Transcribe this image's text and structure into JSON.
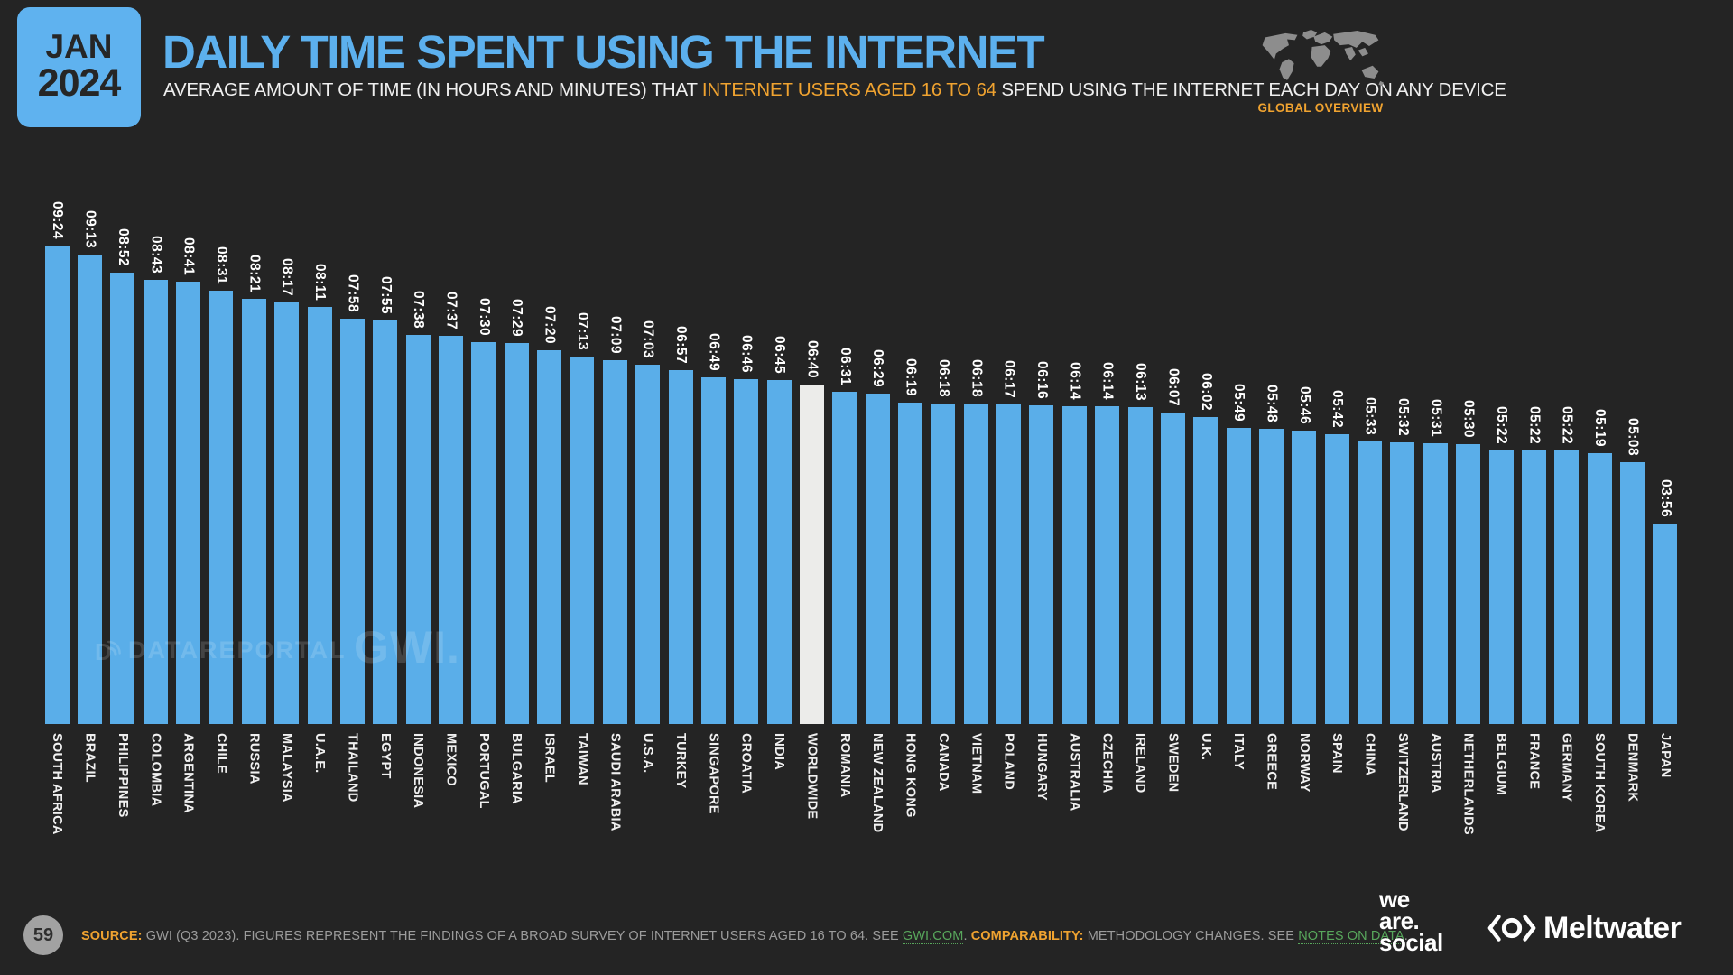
{
  "header": {
    "badge_month": "JAN",
    "badge_year": "2024",
    "title": "DAILY TIME SPENT USING THE INTERNET",
    "subtitle_pre": "AVERAGE AMOUNT OF TIME (IN HOURS AND MINUTES) THAT ",
    "subtitle_highlight": "INTERNET USERS AGED 16 TO 64",
    "subtitle_post": " SPEND USING THE INTERNET EACH DAY ON ANY DEVICE",
    "map_label": "GLOBAL OVERVIEW"
  },
  "chart_data": {
    "type": "bar",
    "title": "DAILY TIME SPENT USING THE INTERNET",
    "value_format": "HH:MM",
    "categories": [
      "SOUTH AFRICA",
      "BRAZIL",
      "PHILIPPINES",
      "COLOMBIA",
      "ARGENTINA",
      "CHILE",
      "RUSSIA",
      "MALAYSIA",
      "U.A.E.",
      "THAILAND",
      "EGYPT",
      "INDONESIA",
      "MEXICO",
      "PORTUGAL",
      "BULGARIA",
      "ISRAEL",
      "TAIWAN",
      "SAUDI ARABIA",
      "U.S.A.",
      "TURKEY",
      "SINGAPORE",
      "CROATIA",
      "INDIA",
      "WORLDWIDE",
      "ROMANIA",
      "NEW ZEALAND",
      "HONG KONG",
      "CANADA",
      "VIETNAM",
      "POLAND",
      "HUNGARY",
      "AUSTRALIA",
      "CZECHIA",
      "IRELAND",
      "SWEDEN",
      "U.K.",
      "ITALY",
      "GREECE",
      "NORWAY",
      "SPAIN",
      "CHINA",
      "SWITZERLAND",
      "AUSTRIA",
      "NETHERLANDS",
      "BELGIUM",
      "FRANCE",
      "GERMANY",
      "SOUTH KOREA",
      "DENMARK",
      "JAPAN"
    ],
    "values": [
      "09:24",
      "09:13",
      "08:52",
      "08:43",
      "08:41",
      "08:31",
      "08:21",
      "08:17",
      "08:11",
      "07:58",
      "07:55",
      "07:38",
      "07:37",
      "07:30",
      "07:29",
      "07:20",
      "07:13",
      "07:09",
      "07:03",
      "06:57",
      "06:49",
      "06:46",
      "06:45",
      "06:40",
      "06:31",
      "06:29",
      "06:19",
      "06:18",
      "06:18",
      "06:17",
      "06:16",
      "06:14",
      "06:14",
      "06:13",
      "06:07",
      "06:02",
      "05:49",
      "05:48",
      "05:46",
      "05:42",
      "05:33",
      "05:32",
      "05:31",
      "05:30",
      "05:22",
      "05:22",
      "05:22",
      "05:19",
      "05:08",
      "03:56"
    ],
    "highlight_category": "WORLDWIDE",
    "highlight_index": 23,
    "bar_color": "#5AAEE9",
    "highlight_color": "#ECECEA",
    "label_color": "#FFFFFF",
    "legend": "none",
    "grid": "off"
  },
  "watermarks": {
    "datareportal": "DATAREPORTAL",
    "gwi": "GWI."
  },
  "footer": {
    "page_number": "59",
    "source_label": "SOURCE:",
    "source_text_1": " GWI (Q3 2023). FIGURES REPRESENT THE FINDINGS OF A BROAD SURVEY OF INTERNET USERS AGED 16 TO 64. SEE ",
    "source_link": "GWI.COM",
    "source_text_2": ". ",
    "comparability_label": "COMPARABILITY:",
    "comparability_text_1": " METHODOLOGY CHANGES. SEE ",
    "comparability_link": "NOTES ON DATA",
    "comparability_text_2": ".",
    "logo_was": [
      "we",
      "are.",
      "social"
    ],
    "logo_meltwater": "Meltwater"
  }
}
